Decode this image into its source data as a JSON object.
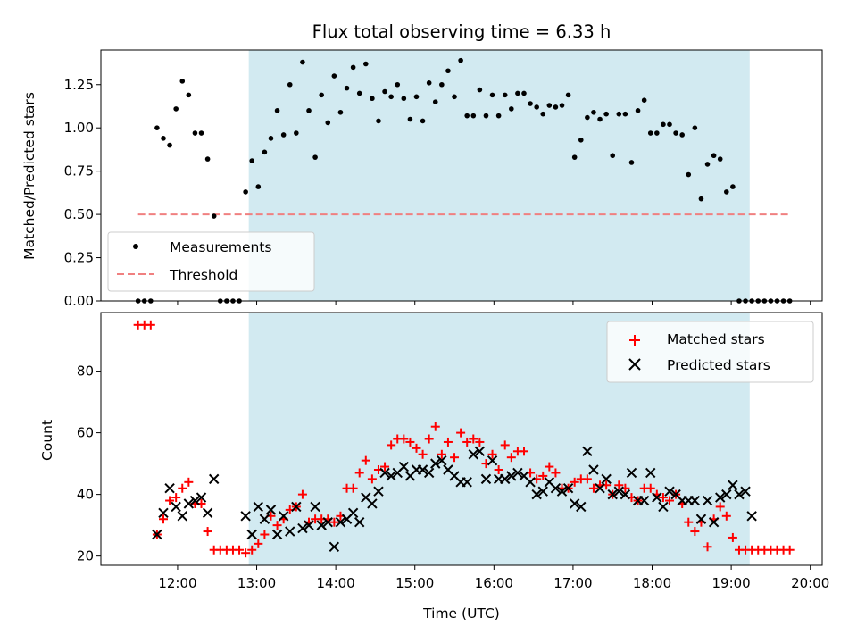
{
  "chart_data": [
    {
      "type": "scatter",
      "title": "Flux total observing time = 6.33 h",
      "ylabel": "Matched/Predicted stars",
      "xlabel": "",
      "x_unit": "hours UTC",
      "xlim": [
        11.03,
        20.15
      ],
      "ylim": [
        0,
        1.45
      ],
      "yticks": [
        "0.00",
        "0.25",
        "0.50",
        "0.75",
        "1.00",
        "1.25"
      ],
      "shaded_interval": [
        "12:54",
        "19:14"
      ],
      "shade_color": "#add8e6",
      "legend": {
        "placement": "lower-left",
        "entries": [
          "Measurements",
          "Threshold"
        ]
      },
      "series": [
        {
          "name": "Measurements",
          "color": "#000000",
          "marker": "dot",
          "x": [
            11.5,
            11.58,
            11.66,
            11.74,
            11.82,
            11.9,
            11.98,
            12.06,
            12.14,
            12.22,
            12.3,
            12.38,
            12.46,
            12.54,
            12.62,
            12.7,
            12.78,
            12.86,
            12.94,
            13.02,
            13.1,
            13.18,
            13.26,
            13.34,
            13.42,
            13.5,
            13.58,
            13.66,
            13.74,
            13.82,
            13.9,
            13.98,
            14.06,
            14.14,
            14.22,
            14.3,
            14.38,
            14.46,
            14.54,
            14.62,
            14.7,
            14.78,
            14.86,
            14.94,
            15.02,
            15.1,
            15.18,
            15.26,
            15.34,
            15.42,
            15.5,
            15.58,
            15.66,
            15.74,
            15.82,
            15.9,
            15.98,
            16.06,
            16.14,
            16.22,
            16.3,
            16.38,
            16.46,
            16.54,
            16.62,
            16.7,
            16.78,
            16.86,
            16.94,
            17.02,
            17.1,
            17.18,
            17.26,
            17.34,
            17.42,
            17.5,
            17.58,
            17.66,
            17.74,
            17.82,
            17.9,
            17.98,
            18.06,
            18.14,
            18.22,
            18.3,
            18.38,
            18.46,
            18.54,
            18.62,
            18.7,
            18.78,
            18.86,
            18.94,
            19.02,
            19.1,
            19.18,
            19.26,
            19.34,
            19.42,
            19.5,
            19.58,
            19.66,
            19.74
          ],
          "y": [
            0,
            0,
            0,
            1.0,
            0.94,
            0.9,
            1.11,
            1.27,
            1.19,
            0.97,
            0.97,
            0.82,
            0.49,
            0,
            0,
            0,
            0,
            0.63,
            0.81,
            0.66,
            0.86,
            0.94,
            1.1,
            0.96,
            1.25,
            0.97,
            1.38,
            1.1,
            0.83,
            1.19,
            1.03,
            1.3,
            1.09,
            1.23,
            1.35,
            1.2,
            1.37,
            1.17,
            1.04,
            1.21,
            1.18,
            1.25,
            1.17,
            1.05,
            1.18,
            1.04,
            1.26,
            1.15,
            1.25,
            1.33,
            1.18,
            1.39,
            1.07,
            1.07,
            1.22,
            1.07,
            1.19,
            1.07,
            1.19,
            1.11,
            1.2,
            1.2,
            1.14,
            1.12,
            1.08,
            1.13,
            1.12,
            1.13,
            1.19,
            0.83,
            0.93,
            1.06,
            1.09,
            1.05,
            1.08,
            0.84,
            1.08,
            1.08,
            0.8,
            1.1,
            1.16,
            0.97,
            0.97,
            1.02,
            1.02,
            0.97,
            0.96,
            0.73,
            1.0,
            0.59,
            0.79,
            0.84,
            0.82,
            0.63,
            0.66,
            0,
            0,
            0,
            0,
            0,
            0,
            0,
            0,
            0
          ]
        },
        {
          "name": "Threshold",
          "color": "#f08080",
          "style": "dashed",
          "x": [
            11.5,
            19.75
          ],
          "y": [
            0.5,
            0.5
          ]
        }
      ]
    },
    {
      "type": "scatter",
      "title": "",
      "xlabel": "Time (UTC)",
      "ylabel": "Count",
      "x_unit": "hours UTC",
      "xlim": [
        11.03,
        20.15
      ],
      "ylim": [
        17,
        99
      ],
      "xticks": [
        "12:00",
        "13:00",
        "14:00",
        "15:00",
        "16:00",
        "17:00",
        "18:00",
        "19:00",
        "20:00"
      ],
      "yticks": [
        "20",
        "40",
        "60",
        "80"
      ],
      "shaded_interval": [
        "12:54",
        "19:14"
      ],
      "shade_color": "#add8e6",
      "legend": {
        "placement": "upper-right",
        "entries": [
          "Matched stars",
          "Predicted stars"
        ]
      },
      "series": [
        {
          "name": "Matched stars",
          "color": "#ff0000",
          "marker": "plus",
          "x": [
            11.5,
            11.58,
            11.66,
            11.74,
            11.82,
            11.9,
            11.98,
            12.06,
            12.14,
            12.22,
            12.3,
            12.38,
            12.46,
            12.54,
            12.62,
            12.7,
            12.78,
            12.86,
            12.94,
            13.02,
            13.1,
            13.18,
            13.26,
            13.34,
            13.42,
            13.5,
            13.58,
            13.66,
            13.74,
            13.82,
            13.9,
            13.98,
            14.06,
            14.14,
            14.22,
            14.3,
            14.38,
            14.46,
            14.54,
            14.62,
            14.7,
            14.78,
            14.86,
            14.94,
            15.02,
            15.1,
            15.18,
            15.26,
            15.34,
            15.42,
            15.5,
            15.58,
            15.66,
            15.74,
            15.82,
            15.9,
            15.98,
            16.06,
            16.14,
            16.22,
            16.3,
            16.38,
            16.46,
            16.54,
            16.62,
            16.7,
            16.78,
            16.86,
            16.94,
            17.02,
            17.1,
            17.18,
            17.26,
            17.34,
            17.42,
            17.5,
            17.58,
            17.66,
            17.74,
            17.82,
            17.9,
            17.98,
            18.06,
            18.14,
            18.22,
            18.3,
            18.38,
            18.46,
            18.54,
            18.62,
            18.7,
            18.78,
            18.86,
            18.94,
            19.02,
            19.1,
            19.18,
            19.26,
            19.34,
            19.42,
            19.5,
            19.58,
            19.66,
            19.74
          ],
          "y": [
            95,
            95,
            95,
            27,
            32,
            38,
            39,
            42,
            44,
            37,
            37,
            28,
            22,
            22,
            22,
            22,
            22,
            21,
            22,
            24,
            27,
            33,
            30,
            32,
            35,
            36,
            40,
            31,
            32,
            32,
            32,
            31,
            33,
            42,
            42,
            47,
            51,
            45,
            48,
            49,
            56,
            58,
            58,
            57,
            55,
            53,
            58,
            62,
            53,
            57,
            52,
            60,
            57,
            58,
            57,
            50,
            53,
            48,
            56,
            52,
            54,
            54,
            47,
            45,
            46,
            49,
            47,
            42,
            42,
            44,
            45,
            45,
            42,
            43,
            43,
            40,
            43,
            42,
            39,
            38,
            42,
            42,
            40,
            39,
            38,
            40,
            37,
            31,
            28,
            31,
            23,
            32,
            36,
            33,
            26,
            22,
            22,
            22,
            22,
            22,
            22,
            22,
            22,
            22
          ]
        },
        {
          "name": "Predicted stars",
          "color": "#000000",
          "marker": "x",
          "x": [
            11.74,
            11.82,
            11.9,
            11.98,
            12.06,
            12.14,
            12.22,
            12.3,
            12.38,
            12.46,
            12.86,
            12.94,
            13.02,
            13.1,
            13.18,
            13.26,
            13.34,
            13.42,
            13.5,
            13.58,
            13.66,
            13.74,
            13.82,
            13.9,
            13.98,
            14.06,
            14.14,
            14.22,
            14.3,
            14.38,
            14.46,
            14.54,
            14.62,
            14.7,
            14.78,
            14.86,
            14.94,
            15.02,
            15.1,
            15.18,
            15.26,
            15.34,
            15.42,
            15.5,
            15.58,
            15.66,
            15.74,
            15.82,
            15.9,
            15.98,
            16.06,
            16.14,
            16.22,
            16.3,
            16.38,
            16.46,
            16.54,
            16.62,
            16.7,
            16.78,
            16.86,
            16.94,
            17.02,
            17.1,
            17.18,
            17.26,
            17.34,
            17.42,
            17.5,
            17.58,
            17.66,
            17.74,
            17.82,
            17.9,
            17.98,
            18.06,
            18.14,
            18.22,
            18.3,
            18.38,
            18.46,
            18.54,
            18.62,
            18.7,
            18.78,
            18.86,
            18.94,
            19.02,
            19.1,
            19.18,
            19.26
          ],
          "y": [
            27,
            34,
            42,
            36,
            33,
            37,
            38,
            39,
            34,
            45,
            33,
            27,
            36,
            32,
            35,
            27,
            33,
            28,
            36,
            29,
            30,
            36,
            30,
            31,
            23,
            31,
            32,
            34,
            31,
            39,
            37,
            41,
            47,
            46,
            47,
            49,
            46,
            48,
            48,
            47,
            50,
            51,
            48,
            46,
            44,
            44,
            53,
            54,
            45,
            51,
            45,
            45,
            46,
            47,
            46,
            44,
            40,
            41,
            44,
            42,
            41,
            42,
            37,
            36,
            54,
            48,
            42,
            45,
            40,
            41,
            40,
            47,
            38,
            38,
            47,
            39,
            36,
            41,
            40,
            38,
            38,
            38,
            32,
            38,
            31,
            39,
            40,
            43,
            40,
            41,
            33
          ]
        }
      ]
    }
  ]
}
